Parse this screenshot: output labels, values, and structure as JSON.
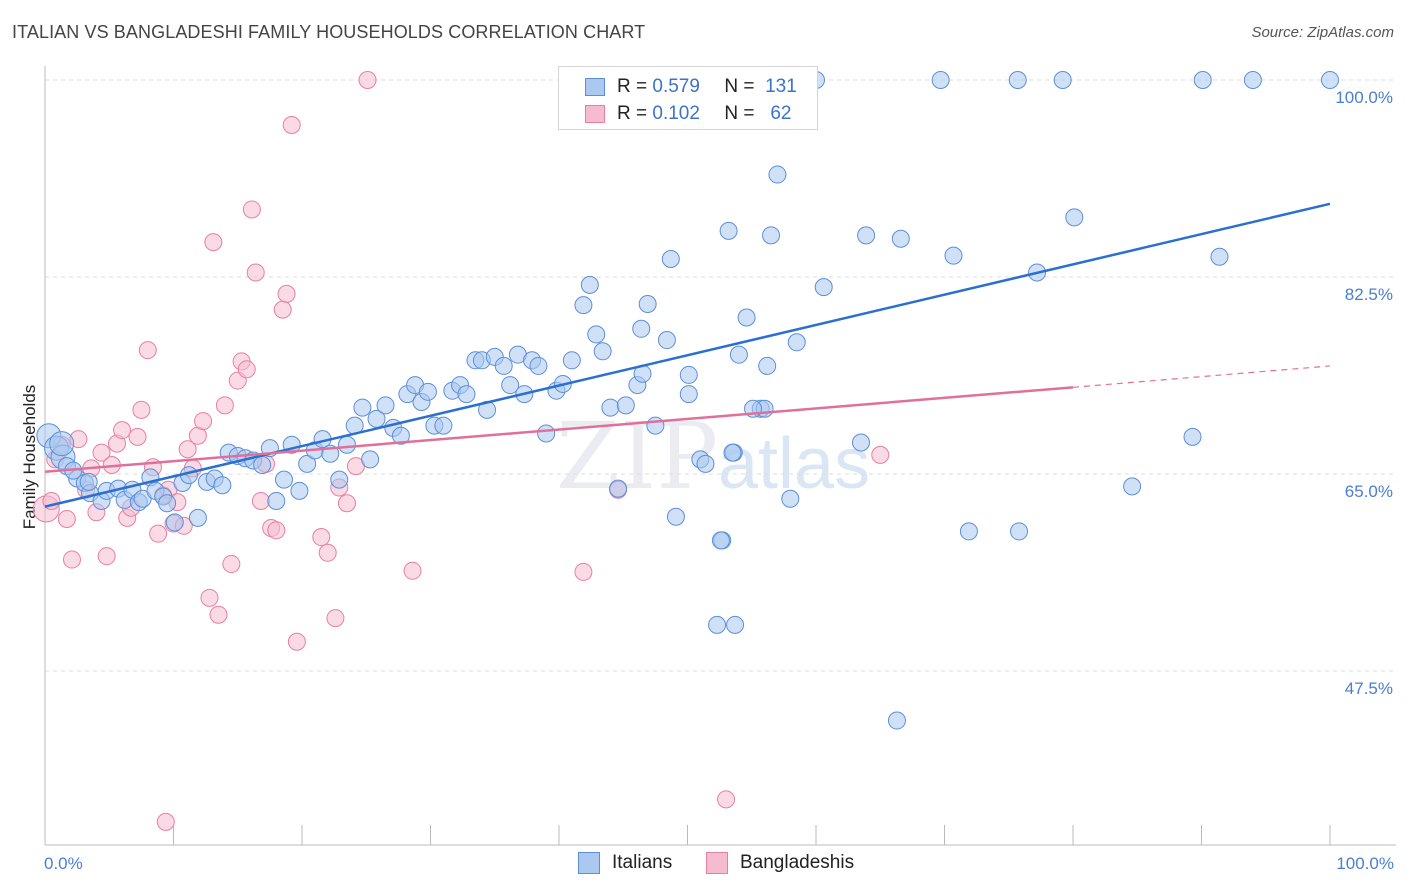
{
  "title": "ITALIAN VS BANGLADESHI FAMILY HOUSEHOLDS CORRELATION CHART",
  "source": "Source: ZipAtlas.com",
  "watermark": {
    "zip": "ZIP",
    "atlas": "atlas"
  },
  "colors": {
    "italians": "#5b8fd9",
    "italians_fill": "#aac8f0",
    "italians_line": "#2b6fd0",
    "bangladeshis": "#e87fa3",
    "bangladeshis_fill": "#f5bcd0",
    "bangladeshis_line": "#e0709a",
    "tick": "#4a7fd0",
    "grid": "#dddddd"
  },
  "stats": {
    "italians": {
      "r_label": "R =",
      "r": "0.579",
      "n_label": "N =",
      "n": "131"
    },
    "bangladeshis": {
      "r_label": "R =",
      "r": "0.102",
      "n_label": "N =",
      "n": "62"
    }
  },
  "legend": {
    "italians": "Italians",
    "bangladeshis": "Bangladeshis"
  },
  "chart_data": {
    "type": "scatter",
    "title": "ITALIAN VS BANGLADESHI FAMILY HOUSEHOLDS CORRELATION CHART",
    "xlabel": "",
    "ylabel": "Family Households",
    "xlim": [
      0,
      100
    ],
    "ylim": [
      30,
      101.5
    ],
    "x_tick_labels": [
      "0.0%",
      "100.0%"
    ],
    "y_ticks": [
      47.5,
      65.0,
      82.5,
      100.0
    ],
    "y_tick_labels": [
      "47.5%",
      "65.0%",
      "82.5%",
      "100.0%"
    ],
    "series": [
      {
        "name": "Italians",
        "trend": {
          "x0": 0,
          "y0": 62.1,
          "x1": 100,
          "y1": 89.0
        },
        "points": [
          [
            0.3,
            68.4
          ],
          [
            0.9,
            67.3
          ],
          [
            1.4,
            66.5
          ],
          [
            1.7,
            65.7
          ],
          [
            2.5,
            64.6
          ],
          [
            3.1,
            64.2
          ],
          [
            3.5,
            63.3
          ],
          [
            4.4,
            62.6
          ],
          [
            4.8,
            63.5
          ],
          [
            5.7,
            63.7
          ],
          [
            6.2,
            62.7
          ],
          [
            6.8,
            63.6
          ],
          [
            7.3,
            62.5
          ],
          [
            7.6,
            62.8
          ],
          [
            8.2,
            64.7
          ],
          [
            8.6,
            63.5
          ],
          [
            9.2,
            63.0
          ],
          [
            9.5,
            62.4
          ],
          [
            10.1,
            60.7
          ],
          [
            10.7,
            64.2
          ],
          [
            11.2,
            64.9
          ],
          [
            11.9,
            61.1
          ],
          [
            12.6,
            64.3
          ],
          [
            13.2,
            64.6
          ],
          [
            13.8,
            64.0
          ],
          [
            14.3,
            66.9
          ],
          [
            15.0,
            66.6
          ],
          [
            15.6,
            66.4
          ],
          [
            16.2,
            66.2
          ],
          [
            16.9,
            65.8
          ],
          [
            17.5,
            67.3
          ],
          [
            18.0,
            62.6
          ],
          [
            18.6,
            64.5
          ],
          [
            19.2,
            67.6
          ],
          [
            19.8,
            63.5
          ],
          [
            20.4,
            65.9
          ],
          [
            21.0,
            67.1
          ],
          [
            21.6,
            68.1
          ],
          [
            22.2,
            66.8
          ],
          [
            22.9,
            64.5
          ],
          [
            23.5,
            67.6
          ],
          [
            24.1,
            69.3
          ],
          [
            24.7,
            70.9
          ],
          [
            25.3,
            66.3
          ],
          [
            25.8,
            69.9
          ],
          [
            26.5,
            71.1
          ],
          [
            27.1,
            69.1
          ],
          [
            27.7,
            68.4
          ],
          [
            28.2,
            72.1
          ],
          [
            28.8,
            72.9
          ],
          [
            29.3,
            71.4
          ],
          [
            29.8,
            72.3
          ],
          [
            30.3,
            69.3
          ],
          [
            31.0,
            69.3
          ],
          [
            31.7,
            72.4
          ],
          [
            32.3,
            72.9
          ],
          [
            32.8,
            72.1
          ],
          [
            33.5,
            75.1
          ],
          [
            34.0,
            75.1
          ],
          [
            34.4,
            70.7
          ],
          [
            35.0,
            75.4
          ],
          [
            35.7,
            74.6
          ],
          [
            36.2,
            72.9
          ],
          [
            36.8,
            75.6
          ],
          [
            37.3,
            72.1
          ],
          [
            37.9,
            75.1
          ],
          [
            38.4,
            74.6
          ],
          [
            39.0,
            68.6
          ],
          [
            39.8,
            72.4
          ],
          [
            40.3,
            73.0
          ],
          [
            41.0,
            75.1
          ],
          [
            41.9,
            80.0
          ],
          [
            42.4,
            81.8
          ],
          [
            42.9,
            77.4
          ],
          [
            43.4,
            75.9
          ],
          [
            44.0,
            70.9
          ],
          [
            44.6,
            63.7
          ],
          [
            45.2,
            71.1
          ],
          [
            46.1,
            72.9
          ],
          [
            46.4,
            77.9
          ],
          [
            46.9,
            80.1
          ],
          [
            47.5,
            69.3
          ],
          [
            48.4,
            76.9
          ],
          [
            48.7,
            84.1
          ],
          [
            49.1,
            61.2
          ],
          [
            50.1,
            73.8
          ],
          [
            50.1,
            72.1
          ],
          [
            51.0,
            66.3
          ],
          [
            51.4,
            65.9
          ],
          [
            52.3,
            51.6
          ],
          [
            52.7,
            59.1
          ],
          [
            53.2,
            86.6
          ],
          [
            53.6,
            66.9
          ],
          [
            54.0,
            75.6
          ],
          [
            54.6,
            78.9
          ],
          [
            55.7,
            70.8
          ],
          [
            56.0,
            70.8
          ],
          [
            53.7,
            51.6
          ],
          [
            52.6,
            59.1
          ],
          [
            53.5,
            66.9
          ],
          [
            55.1,
            70.8
          ],
          [
            56.2,
            74.6
          ],
          [
            56.5,
            86.2
          ],
          [
            57.0,
            91.6
          ],
          [
            58.0,
            62.8
          ],
          [
            58.5,
            76.7
          ],
          [
            58.8,
            100.0
          ],
          [
            60.0,
            100.0
          ],
          [
            60.6,
            81.6
          ],
          [
            63.5,
            67.8
          ],
          [
            63.9,
            86.2
          ],
          [
            66.3,
            43.1
          ],
          [
            66.6,
            85.9
          ],
          [
            69.7,
            100.0
          ],
          [
            70.7,
            84.4
          ],
          [
            71.9,
            59.9
          ],
          [
            75.7,
            100.0
          ],
          [
            75.8,
            59.9
          ],
          [
            77.2,
            82.9
          ],
          [
            79.2,
            100.0
          ],
          [
            80.1,
            87.8
          ],
          [
            84.6,
            63.9
          ],
          [
            89.3,
            68.3
          ],
          [
            90.1,
            100.0
          ],
          [
            91.4,
            84.3
          ],
          [
            94.0,
            100.0
          ],
          [
            100.0,
            100.0
          ],
          [
            3.4,
            64.3
          ],
          [
            2.2,
            65.3
          ],
          [
            1.3,
            67.7
          ],
          [
            46.5,
            73.9
          ]
        ]
      },
      {
        "name": "Bangladeshis",
        "trend": {
          "x0": 0,
          "y0": 65.2,
          "x1": 80,
          "y1": 72.7,
          "dash_x1": 100,
          "dash_y1": 74.6
        },
        "points": [
          [
            0.1,
            61.9
          ],
          [
            0.5,
            62.6
          ],
          [
            0.8,
            66.3
          ],
          [
            1.3,
            67.6
          ],
          [
            1.7,
            61.0
          ],
          [
            2.1,
            57.4
          ],
          [
            2.6,
            68.1
          ],
          [
            3.2,
            63.6
          ],
          [
            3.6,
            65.5
          ],
          [
            4.0,
            61.6
          ],
          [
            4.4,
            66.9
          ],
          [
            4.8,
            57.7
          ],
          [
            5.2,
            65.8
          ],
          [
            5.6,
            67.7
          ],
          [
            6.0,
            68.9
          ],
          [
            6.4,
            61.1
          ],
          [
            6.7,
            62.0
          ],
          [
            7.2,
            68.3
          ],
          [
            7.5,
            70.7
          ],
          [
            8.0,
            76.0
          ],
          [
            8.4,
            65.6
          ],
          [
            8.8,
            59.7
          ],
          [
            9.2,
            63.1
          ],
          [
            9.6,
            63.6
          ],
          [
            10.0,
            60.6
          ],
          [
            10.3,
            62.5
          ],
          [
            10.8,
            60.4
          ],
          [
            11.1,
            67.2
          ],
          [
            11.5,
            65.5
          ],
          [
            11.9,
            68.4
          ],
          [
            12.3,
            69.7
          ],
          [
            12.8,
            54.0
          ],
          [
            13.1,
            85.6
          ],
          [
            13.5,
            52.5
          ],
          [
            14.0,
            71.1
          ],
          [
            14.5,
            57.0
          ],
          [
            15.0,
            73.3
          ],
          [
            15.3,
            75.0
          ],
          [
            15.7,
            74.3
          ],
          [
            16.1,
            88.5
          ],
          [
            16.4,
            82.9
          ],
          [
            16.8,
            62.6
          ],
          [
            17.2,
            65.9
          ],
          [
            17.6,
            60.2
          ],
          [
            18.0,
            60.0
          ],
          [
            18.5,
            79.6
          ],
          [
            18.8,
            81.0
          ],
          [
            19.2,
            96.0
          ],
          [
            19.6,
            50.1
          ],
          [
            21.5,
            59.4
          ],
          [
            22.0,
            58.0
          ],
          [
            22.6,
            52.2
          ],
          [
            22.9,
            63.8
          ],
          [
            23.5,
            62.4
          ],
          [
            24.2,
            65.7
          ],
          [
            25.1,
            100.0
          ],
          [
            28.6,
            56.4
          ],
          [
            41.9,
            56.3
          ],
          [
            44.6,
            63.6
          ],
          [
            53.0,
            36.1
          ],
          [
            65.0,
            66.7
          ],
          [
            9.4,
            34.1
          ]
        ]
      }
    ]
  }
}
